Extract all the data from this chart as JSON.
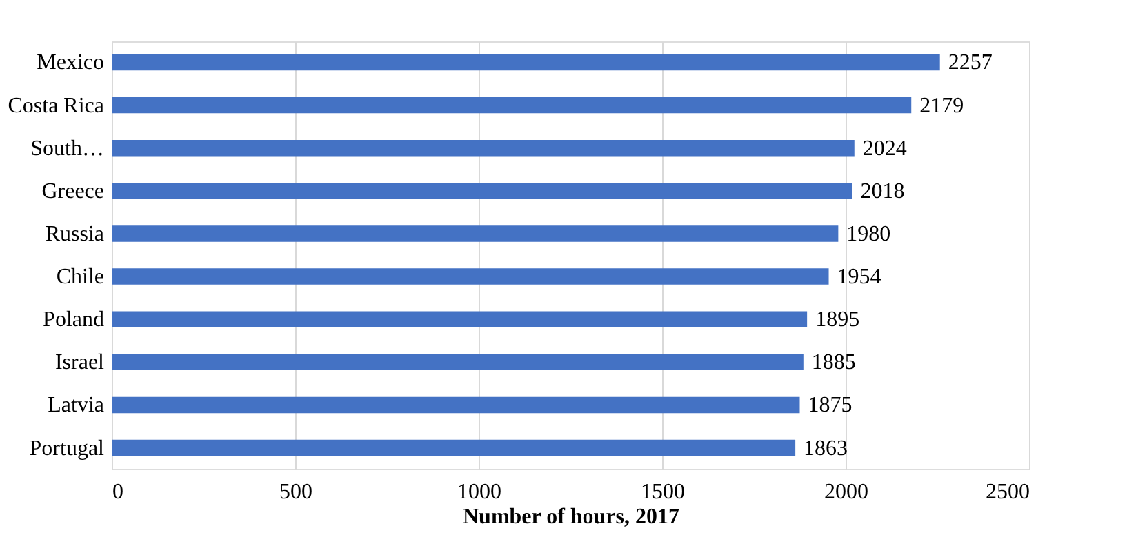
{
  "chart_data": {
    "type": "bar",
    "orientation": "horizontal",
    "categories": [
      "Mexico",
      "Costa Rica",
      "South…",
      "Greece",
      "Russia",
      "Chile",
      "Poland",
      "Israel",
      "Latvia",
      "Portugal"
    ],
    "values": [
      2257,
      2179,
      2024,
      2018,
      1980,
      1954,
      1895,
      1885,
      1875,
      1863
    ],
    "color": "#4472c4",
    "xlabel": "Number of hours, 2017",
    "xlim": [
      0,
      2500
    ],
    "xticks": [
      0,
      500,
      1000,
      1500,
      2000,
      2500
    ],
    "grid": "x",
    "data_labels": true
  }
}
